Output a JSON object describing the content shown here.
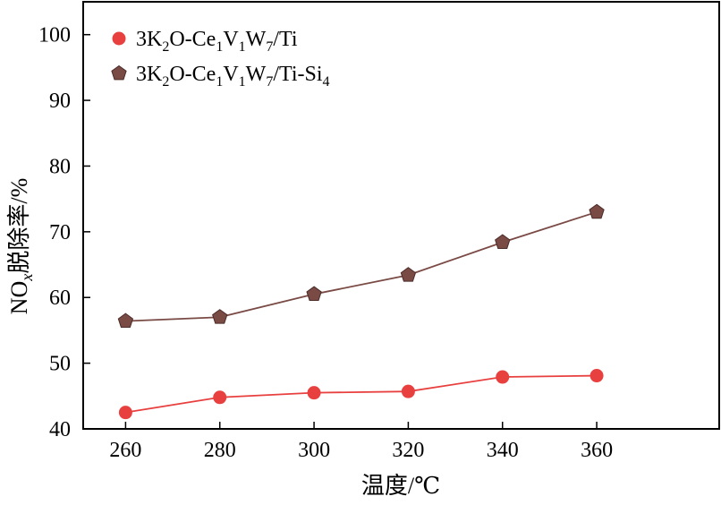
{
  "chart_data": {
    "type": "line",
    "x": [
      260,
      280,
      300,
      320,
      340,
      360
    ],
    "xticks": [
      "260",
      "280",
      "300",
      "320",
      "340",
      "360"
    ],
    "yticks": [
      "40",
      "50",
      "60",
      "70",
      "80",
      "90",
      "100"
    ],
    "xlim": [
      251,
      386
    ],
    "ylim": [
      40,
      105
    ],
    "xlabel": "温度/℃",
    "ylabel": {
      "pre": "NO",
      "sub": "x",
      "post": "脱除率/%"
    },
    "legend_position": "top-left",
    "grid": false,
    "series": [
      {
        "name": "3K2O-Ce1V1W7/Ti",
        "name_parts": [
          {
            "t": "3K"
          },
          {
            "t": "2",
            "sub": true
          },
          {
            "t": "O-Ce"
          },
          {
            "t": "1",
            "sub": true
          },
          {
            "t": "V"
          },
          {
            "t": "1",
            "sub": true
          },
          {
            "t": "W"
          },
          {
            "t": "7",
            "sub": true
          },
          {
            "t": "/Ti"
          }
        ],
        "marker": "circle",
        "color": "#e8403f",
        "values": [
          42.5,
          44.8,
          45.5,
          45.7,
          47.9,
          48.1
        ]
      },
      {
        "name": "3K2O-Ce1V1W7/Ti-Si4",
        "name_parts": [
          {
            "t": "3K"
          },
          {
            "t": "2",
            "sub": true
          },
          {
            "t": "O-Ce"
          },
          {
            "t": "1",
            "sub": true
          },
          {
            "t": "V"
          },
          {
            "t": "1",
            "sub": true
          },
          {
            "t": "W"
          },
          {
            "t": "7",
            "sub": true
          },
          {
            "t": "/Ti-Si"
          },
          {
            "t": "4",
            "sub": true
          }
        ],
        "marker": "pentagon",
        "color": "#7a4a45",
        "values": [
          56.4,
          57.0,
          60.5,
          63.4,
          68.4,
          73.0
        ]
      }
    ]
  }
}
